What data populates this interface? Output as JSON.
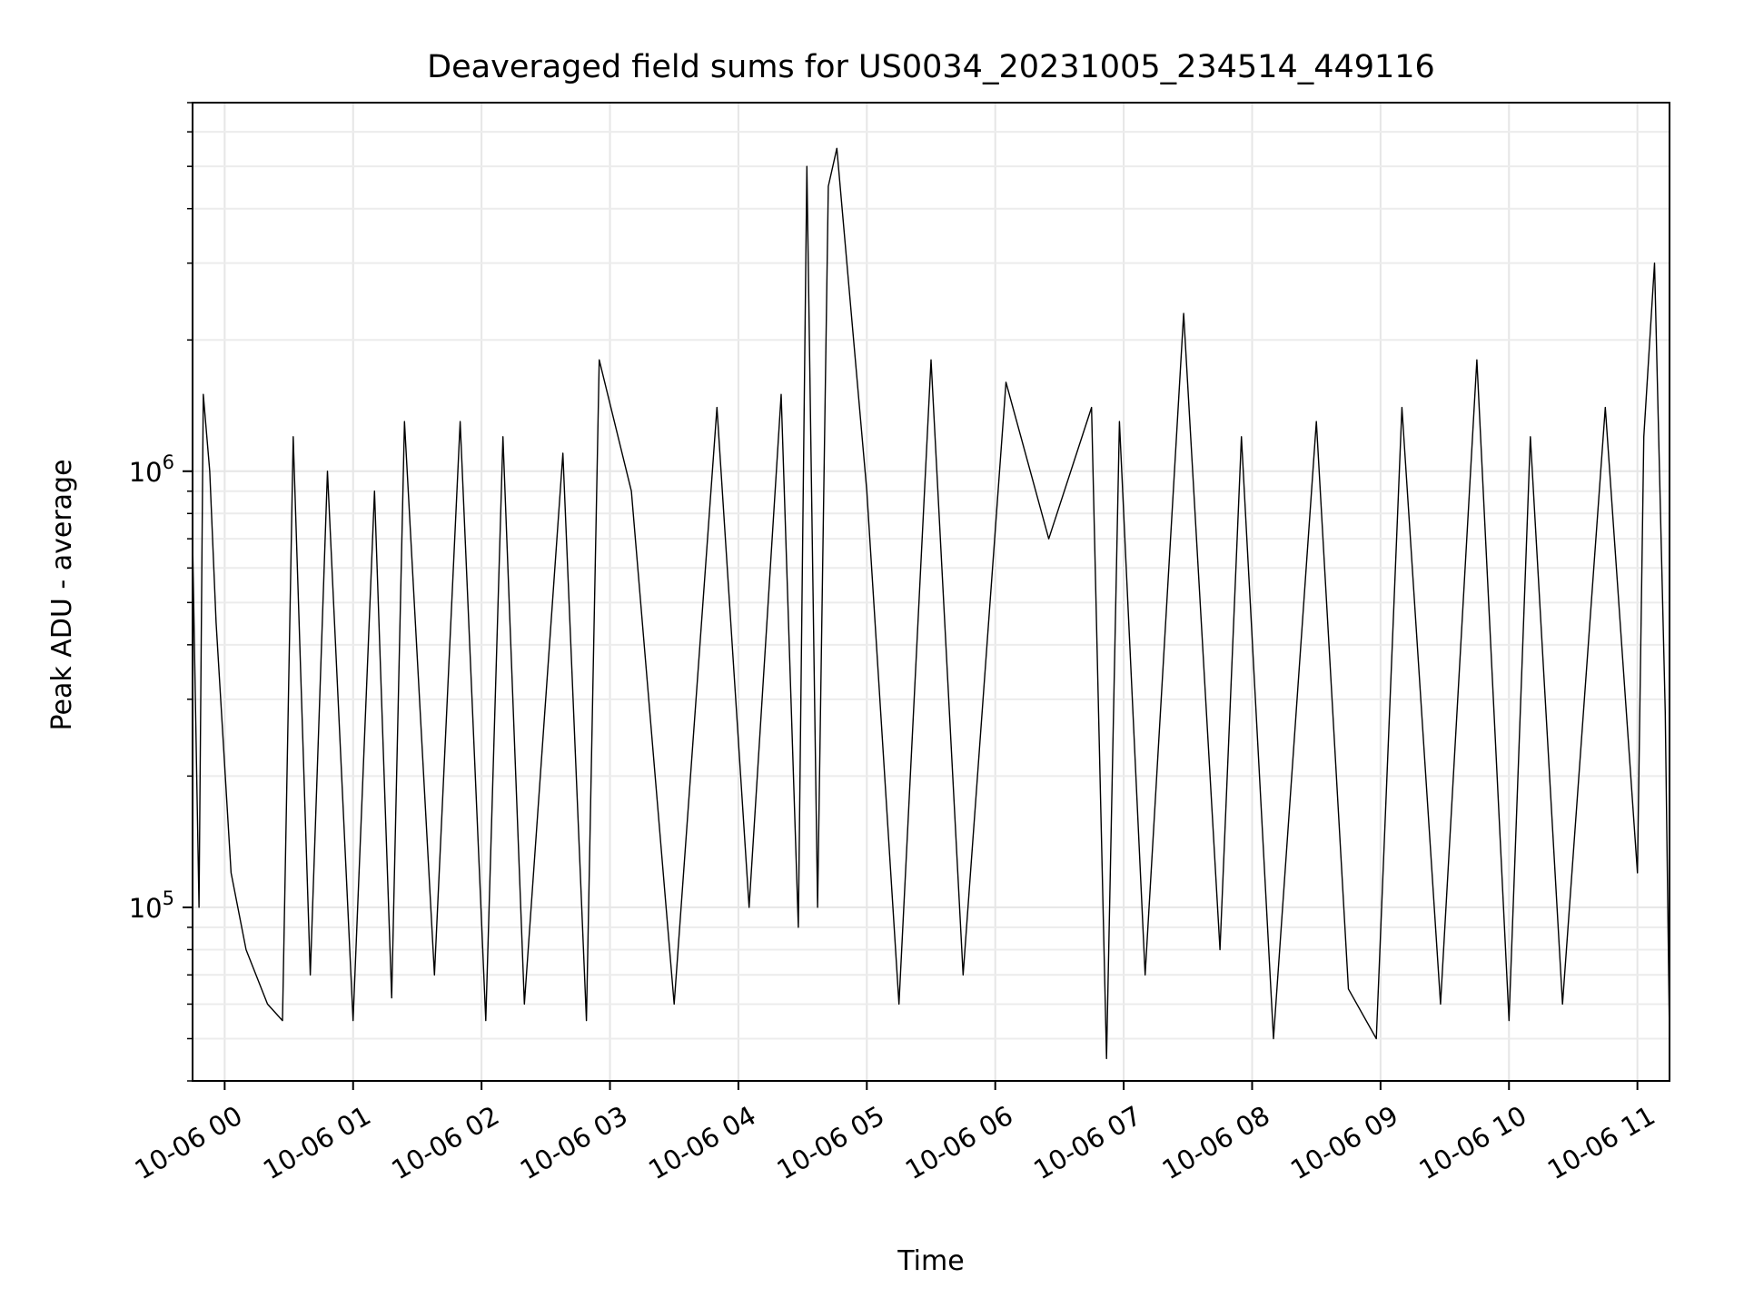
{
  "chart_data": {
    "type": "line",
    "title": "Deaveraged field sums for US0034_20231005_234514_449116",
    "xlabel": "Time",
    "ylabel": "Peak ADU - average",
    "y_scale": "log",
    "ylim": [
      40000,
      7000000
    ],
    "xlim": [
      "2023-10-05 23:45",
      "2023-10-06 11:15"
    ],
    "grid": true,
    "line_color": "#000000",
    "x_ticks": [
      {
        "t": "2023-10-06 00:00",
        "label": "10-06 00"
      },
      {
        "t": "2023-10-06 01:00",
        "label": "10-06 01"
      },
      {
        "t": "2023-10-06 02:00",
        "label": "10-06 02"
      },
      {
        "t": "2023-10-06 03:00",
        "label": "10-06 03"
      },
      {
        "t": "2023-10-06 04:00",
        "label": "10-06 04"
      },
      {
        "t": "2023-10-06 05:00",
        "label": "10-06 05"
      },
      {
        "t": "2023-10-06 06:00",
        "label": "10-06 06"
      },
      {
        "t": "2023-10-06 07:00",
        "label": "10-06 07"
      },
      {
        "t": "2023-10-06 08:00",
        "label": "10-06 08"
      },
      {
        "t": "2023-10-06 09:00",
        "label": "10-06 09"
      },
      {
        "t": "2023-10-06 10:00",
        "label": "10-06 10"
      },
      {
        "t": "2023-10-06 11:00",
        "label": "10-06 11"
      }
    ],
    "y_ticks": [
      {
        "value": 100000,
        "base": "10",
        "exp": "5"
      },
      {
        "value": 1000000,
        "base": "10",
        "exp": "6"
      }
    ],
    "series": [
      {
        "x": [
          "2023-10-05 23:45",
          "2023-10-05 23:48",
          "2023-10-05 23:50",
          "2023-10-05 23:53",
          "2023-10-05 23:56",
          "2023-10-06 00:03",
          "2023-10-06 00:10",
          "2023-10-06 00:20",
          "2023-10-06 00:27",
          "2023-10-06 00:32",
          "2023-10-06 00:40",
          "2023-10-06 00:48",
          "2023-10-06 01:00",
          "2023-10-06 01:10",
          "2023-10-06 01:18",
          "2023-10-06 01:24",
          "2023-10-06 01:38",
          "2023-10-06 01:50",
          "2023-10-06 02:02",
          "2023-10-06 02:10",
          "2023-10-06 02:20",
          "2023-10-06 02:38",
          "2023-10-06 02:49",
          "2023-10-06 02:55",
          "2023-10-06 03:10",
          "2023-10-06 03:30",
          "2023-10-06 03:50",
          "2023-10-06 04:05",
          "2023-10-06 04:20",
          "2023-10-06 04:28",
          "2023-10-06 04:32",
          "2023-10-06 04:37",
          "2023-10-06 04:42",
          "2023-10-06 04:46",
          "2023-10-06 05:00",
          "2023-10-06 05:15",
          "2023-10-06 05:30",
          "2023-10-06 05:45",
          "2023-10-06 06:05",
          "2023-10-06 06:25",
          "2023-10-06 06:45",
          "2023-10-06 06:52",
          "2023-10-06 06:58",
          "2023-10-06 07:10",
          "2023-10-06 07:28",
          "2023-10-06 07:45",
          "2023-10-06 07:55",
          "2023-10-06 08:10",
          "2023-10-06 08:30",
          "2023-10-06 08:45",
          "2023-10-06 08:58",
          "2023-10-06 09:10",
          "2023-10-06 09:28",
          "2023-10-06 09:45",
          "2023-10-06 10:00",
          "2023-10-06 10:10",
          "2023-10-06 10:25",
          "2023-10-06 10:45",
          "2023-10-06 11:00",
          "2023-10-06 11:03",
          "2023-10-06 11:08",
          "2023-10-06 11:13",
          "2023-10-06 11:15"
        ],
        "values": [
          700000,
          100000,
          1500000,
          1000000,
          450000,
          120000,
          80000,
          60000,
          55000,
          1200000,
          70000,
          1000000,
          55000,
          900000,
          62000,
          1300000,
          70000,
          1300000,
          55000,
          1200000,
          60000,
          1100000,
          55000,
          1800000,
          900000,
          60000,
          1400000,
          100000,
          1500000,
          90000,
          5000000,
          100000,
          4500000,
          5500000,
          900000,
          60000,
          1800000,
          70000,
          1600000,
          700000,
          1400000,
          45000,
          1300000,
          70000,
          2300000,
          80000,
          1200000,
          50000,
          1300000,
          65000,
          50000,
          1400000,
          60000,
          1800000,
          55000,
          1200000,
          60000,
          1400000,
          120000,
          1200000,
          3000000,
          280000,
          50000
        ]
      }
    ]
  }
}
